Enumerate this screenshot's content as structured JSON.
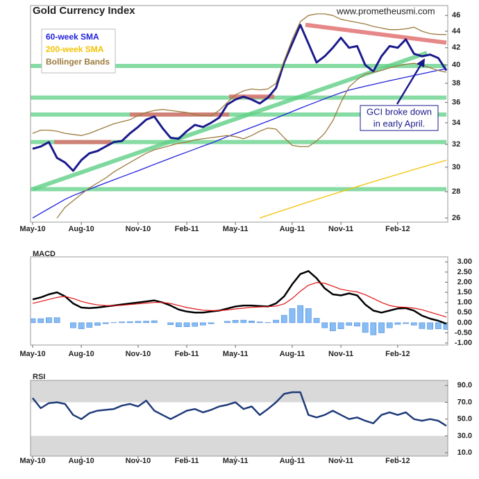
{
  "chart_data": [
    {
      "type": "line",
      "title": "Gold Currency Index",
      "watermark": "www.prometheusmi.com",
      "log_scale": true,
      "legend": "upper-left",
      "categories": [
        "May-10",
        null,
        null,
        null,
        null,
        null,
        "Aug-10",
        null,
        null,
        null,
        null,
        null,
        null,
        "Nov-10",
        null,
        null,
        null,
        null,
        null,
        "Feb-11",
        null,
        null,
        null,
        null,
        null,
        "May-11",
        null,
        null,
        null,
        null,
        null,
        null,
        "Aug-11",
        null,
        null,
        null,
        null,
        null,
        "Nov-11",
        null,
        null,
        null,
        null,
        null,
        null,
        "Feb-12",
        null,
        null,
        null,
        null,
        null,
        null
      ],
      "ylim": [
        25.7,
        47.3
      ],
      "yticks": [
        26,
        28,
        30,
        32,
        34,
        36,
        38,
        40,
        42,
        44,
        46
      ],
      "series": [
        {
          "color": "#1a1a8c",
          "width": 3,
          "values": [
            31.6,
            31.8,
            32.2,
            30.8,
            30.4,
            29.7,
            30.6,
            31.2,
            31.4,
            31.8,
            32.2,
            32.3,
            33.0,
            33.6,
            34.3,
            34.6,
            33.5,
            32.6,
            32.5,
            33.2,
            33.8,
            33.6,
            34.0,
            34.5,
            35.8,
            36.3,
            36.6,
            36.3,
            35.9,
            36.5,
            37.5,
            40.3,
            42.5,
            44.8,
            42.5,
            40.3,
            41.0,
            42.0,
            43.2,
            42.0,
            42.2,
            40.0,
            39.3,
            41.0,
            42.2,
            42.0,
            43.0,
            41.3,
            41.0,
            41.2,
            40.8,
            39.4
          ]
        },
        {
          "name": "60-week SMA",
          "color": "#1f1fdd",
          "width": 1.3,
          "values": [
            26.0,
            26.35,
            26.7,
            27.05,
            27.4,
            27.7,
            27.95,
            28.2,
            28.45,
            28.7,
            28.95,
            29.2,
            29.45,
            29.7,
            29.97,
            30.24,
            30.5,
            30.77,
            31.04,
            31.3,
            31.57,
            31.84,
            32.1,
            32.4,
            32.7,
            32.98,
            33.27,
            33.56,
            33.85,
            34.15,
            34.45,
            34.77,
            35.1,
            35.42,
            35.74,
            36.06,
            36.38,
            36.7,
            37.0,
            37.27,
            37.48,
            37.68,
            37.88,
            38.08,
            38.27,
            38.46,
            38.65,
            38.84,
            39.03,
            39.22,
            39.41,
            39.6
          ]
        },
        {
          "name": "200-week SMA",
          "color": "#f2c200",
          "width": 1.3,
          "values": [
            null,
            null,
            null,
            null,
            null,
            null,
            null,
            null,
            null,
            null,
            null,
            null,
            null,
            null,
            null,
            null,
            null,
            null,
            null,
            null,
            null,
            null,
            null,
            null,
            null,
            null,
            null,
            null,
            26.0,
            26.2,
            26.4,
            26.6,
            26.8,
            27.0,
            27.2,
            27.4,
            27.6,
            27.8,
            28.0,
            28.2,
            28.4,
            28.6,
            28.8,
            29.0,
            29.2,
            29.4,
            29.6,
            29.8,
            30.0,
            30.2,
            30.4,
            30.6
          ]
        },
        {
          "name": "Bollinger Bands",
          "color": "#9c7a3c",
          "width": 1.3,
          "values": [
            33.0,
            33.3,
            33.3,
            33.2,
            33.0,
            32.9,
            32.8,
            33.0,
            33.3,
            33.6,
            33.9,
            34.1,
            34.3,
            34.7,
            35.0,
            35.2,
            35.3,
            35.2,
            35.1,
            35.0,
            34.8,
            34.7,
            34.7,
            35.2,
            36.0,
            36.8,
            37.2,
            37.4,
            37.3,
            37.4,
            38.0,
            40.5,
            43.0,
            45.2,
            46.0,
            46.2,
            46.2,
            46.0,
            45.5,
            45.3,
            45.1,
            44.9,
            44.6,
            44.4,
            44.2,
            44.2,
            44.3,
            44.5,
            44.0,
            43.7,
            43.6,
            43.6
          ],
          "lower": [
            null,
            null,
            null,
            26.0,
            26.8,
            27.3,
            27.8,
            28.3,
            28.7,
            29.1,
            29.6,
            30.0,
            30.4,
            30.8,
            31.2,
            31.5,
            31.7,
            31.9,
            32.1,
            32.2,
            32.4,
            32.5,
            32.6,
            32.7,
            32.8,
            32.7,
            32.5,
            32.8,
            33.2,
            33.5,
            33.4,
            32.6,
            31.9,
            31.8,
            31.8,
            32.3,
            33.0,
            34.2,
            36.0,
            37.6,
            38.4,
            39.0,
            39.2,
            39.4,
            39.7,
            39.9,
            40.1,
            40.2,
            40.0,
            39.7,
            39.4,
            39.2
          ]
        }
      ],
      "support_levels": [
        28.2,
        32.2,
        34.8,
        36.5,
        39.9
      ],
      "support_color": "#5fcf86",
      "resistance_levels": [
        32.2,
        34.8,
        36.6
      ],
      "resistance_color": "#e06a6a",
      "trend_lines": [
        {
          "color": "#5fcf86",
          "start": 28.2,
          "end": 41.4
        },
        {
          "color": "#e06a6a",
          "start": 44.8,
          "end": 42.6
        }
      ],
      "annotation": [
        "GCI broke down",
        "in early April."
      ]
    },
    {
      "type": "line",
      "title": "MACD",
      "categories": [
        "May-10",
        null,
        null,
        null,
        null,
        null,
        "Aug-10",
        null,
        null,
        null,
        null,
        null,
        null,
        "Nov-10",
        null,
        null,
        null,
        null,
        null,
        "Feb-11",
        null,
        null,
        null,
        null,
        null,
        "May-11",
        null,
        null,
        null,
        null,
        null,
        null,
        "Aug-11",
        null,
        null,
        null,
        null,
        null,
        "Nov-11",
        null,
        null,
        null,
        null,
        null,
        null,
        "Feb-12",
        null,
        null,
        null,
        null,
        null,
        null
      ],
      "ylim": [
        -1.1,
        3.25
      ],
      "yticks": [
        {
          "value": 3,
          "label": "3.00"
        },
        {
          "value": 2.5,
          "label": "2.50"
        },
        {
          "value": 2,
          "label": "2.00"
        },
        {
          "value": 1.5,
          "label": "1.50"
        },
        {
          "value": 1,
          "label": "1.00"
        },
        {
          "value": 0.5,
          "label": "0.50"
        },
        {
          "value": 0,
          "label": "0.00"
        },
        {
          "value": -0.5,
          "label": "-0.50"
        },
        {
          "value": -1,
          "label": "-1.00"
        }
      ],
      "series": [
        {
          "type": "bar",
          "color": "#86bdf5",
          "values": [
            0.2,
            0.2,
            0.25,
            0.25,
            0,
            -0.25,
            -0.3,
            -0.23,
            -0.13,
            -0.05,
            0.01,
            0.04,
            0.05,
            0.07,
            0.08,
            0.1,
            0,
            -0.1,
            -0.2,
            -0.2,
            -0.18,
            -0.12,
            -0.05,
            0,
            0.07,
            0.12,
            0.13,
            0.09,
            0.04,
            0.01,
            0.13,
            0.37,
            0.7,
            0.85,
            0.7,
            0.22,
            -0.25,
            -0.4,
            -0.3,
            -0.13,
            -0.17,
            -0.48,
            -0.6,
            -0.5,
            -0.25,
            -0.08,
            -0.04,
            -0.12,
            -0.29,
            -0.32,
            -0.3,
            -0.33
          ]
        },
        {
          "color": "#000000",
          "width": 2.5,
          "values": [
            1.15,
            1.25,
            1.4,
            1.5,
            1.3,
            0.95,
            0.75,
            0.72,
            0.75,
            0.8,
            0.85,
            0.9,
            0.95,
            1.0,
            1.05,
            1.1,
            1.0,
            0.85,
            0.65,
            0.55,
            0.5,
            0.5,
            0.55,
            0.6,
            0.7,
            0.8,
            0.85,
            0.85,
            0.82,
            0.8,
            0.95,
            1.3,
            1.9,
            2.4,
            2.55,
            2.2,
            1.7,
            1.4,
            1.35,
            1.45,
            1.35,
            0.9,
            0.6,
            0.5,
            0.6,
            0.7,
            0.72,
            0.6,
            0.35,
            0.2,
            0.1,
            -0.05
          ]
        },
        {
          "color": "#e01010",
          "width": 1.2,
          "values": [
            0.95,
            1.05,
            1.15,
            1.25,
            1.3,
            1.2,
            1.05,
            0.95,
            0.88,
            0.85,
            0.84,
            0.86,
            0.9,
            0.93,
            0.97,
            1.0,
            1.0,
            0.95,
            0.85,
            0.75,
            0.68,
            0.62,
            0.6,
            0.6,
            0.63,
            0.68,
            0.72,
            0.76,
            0.78,
            0.79,
            0.82,
            0.93,
            1.2,
            1.55,
            1.85,
            1.98,
            1.95,
            1.8,
            1.65,
            1.58,
            1.52,
            1.38,
            1.2,
            1.0,
            0.85,
            0.78,
            0.76,
            0.72,
            0.64,
            0.52,
            0.4,
            0.28
          ]
        }
      ]
    },
    {
      "type": "line",
      "title": "RSI",
      "categories": [
        "May-10",
        null,
        null,
        null,
        null,
        null,
        "Aug-10",
        null,
        null,
        null,
        null,
        null,
        null,
        "Nov-10",
        null,
        null,
        null,
        null,
        null,
        "Feb-11",
        null,
        null,
        null,
        null,
        null,
        "May-11",
        null,
        null,
        null,
        null,
        null,
        null,
        "Aug-11",
        null,
        null,
        null,
        null,
        null,
        "Nov-11",
        null,
        null,
        null,
        null,
        null,
        null,
        "Feb-12",
        null,
        null,
        null,
        null,
        null,
        null
      ],
      "ylim": [
        6,
        96
      ],
      "yticks": [
        {
          "value": 90,
          "label": "90.0"
        },
        {
          "value": 70,
          "label": "70.0"
        },
        {
          "value": 50,
          "label": "50.0"
        },
        {
          "value": 30,
          "label": "30.0"
        },
        {
          "value": 10,
          "label": "10.0"
        }
      ],
      "shaded_above": 70,
      "shaded_below": 30,
      "shade_color": "#d9d9d9",
      "series": [
        {
          "color": "#1f3a7a",
          "width": 2.5,
          "values": [
            75,
            63,
            69,
            70,
            68,
            55,
            50,
            57,
            60,
            61,
            62,
            66,
            68,
            65,
            72,
            60,
            55,
            50,
            55,
            60,
            62,
            58,
            61,
            65,
            67,
            70,
            62,
            65,
            55,
            62,
            70,
            80,
            82,
            82,
            55,
            52,
            55,
            60,
            55,
            50,
            52,
            48,
            45,
            55,
            58,
            55,
            58,
            50,
            48,
            50,
            48,
            42
          ]
        }
      ]
    }
  ]
}
